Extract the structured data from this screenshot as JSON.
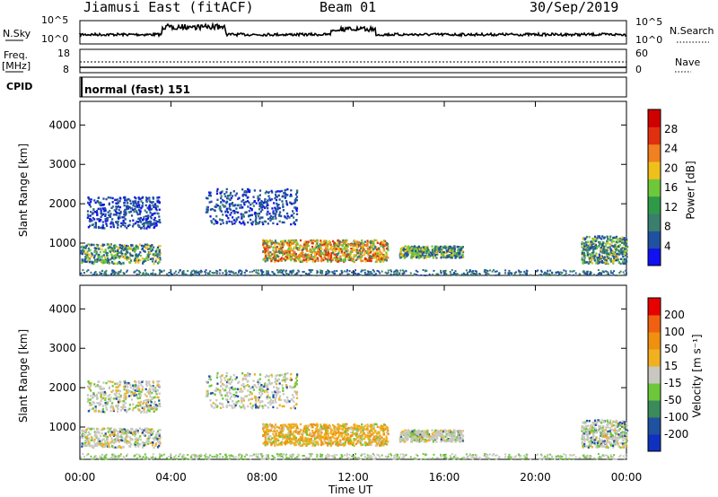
{
  "header": {
    "station": "Jiamusi East (fitACF)",
    "beam": "Beam 01",
    "date": "30/Sep/2019"
  },
  "top_panels": {
    "nsky_label": "N.Sky",
    "nsearch_label": "N.Search",
    "noise_ticks_top": "10^5",
    "noise_ticks_bottom": "10^0",
    "freq_label_line1": "Freq.",
    "freq_label_line2": "[MHz]",
    "freq_ticks": [
      "18",
      "8"
    ],
    "nave_label": "Nave",
    "nave_ticks": [
      "60",
      "0"
    ],
    "cpid_label": "CPID",
    "cpid_value": "normal (fast) 151"
  },
  "colors": {
    "power": [
      "#1010f0",
      "#2050a0",
      "#3a7f6e",
      "#2e9a48",
      "#6fc83a",
      "#f0c01a",
      "#f08020",
      "#e03010",
      "#d00000"
    ],
    "velocity": [
      "#e80000",
      "#f06010",
      "#f09010",
      "#f0b020",
      "#c8c8c0",
      "#6cc83a",
      "#3a8a5a",
      "#2050a0",
      "#1030c0"
    ]
  },
  "chart_data": [
    {
      "type": "heatmap",
      "panel": "power",
      "ylabel": "Slant Range [km]",
      "yticks": [
        "1000",
        "2000",
        "3000",
        "4000"
      ],
      "ylim": [
        180,
        4600
      ],
      "xlim": [
        0,
        24
      ],
      "colorbar_label": "Power [dB]",
      "colorbar_ticks": [
        "4",
        "8",
        "12",
        "16",
        "20",
        "24",
        "28"
      ],
      "scatter_regions": [
        {
          "t": [
            0.3,
            3.5
          ],
          "r": [
            1400,
            2200
          ],
          "level": "low"
        },
        {
          "t": [
            0.0,
            3.5
          ],
          "r": [
            500,
            1000
          ],
          "level": "mid"
        },
        {
          "t": [
            5.5,
            9.5
          ],
          "r": [
            1500,
            2400
          ],
          "level": "low"
        },
        {
          "t": [
            8.0,
            13.5
          ],
          "r": [
            550,
            1100
          ],
          "level": "high"
        },
        {
          "t": [
            14.0,
            16.8
          ],
          "r": [
            650,
            950
          ],
          "level": "mid"
        },
        {
          "t": [
            22.0,
            24.0
          ],
          "r": [
            500,
            1200
          ],
          "level": "mid"
        }
      ]
    },
    {
      "type": "heatmap",
      "panel": "velocity",
      "ylabel": "Slant Range [km]",
      "yticks": [
        "1000",
        "2000",
        "3000",
        "4000"
      ],
      "ylim": [
        180,
        4600
      ],
      "xlim": [
        0,
        24
      ],
      "xticks": [
        "00:00",
        "04:00",
        "08:00",
        "12:00",
        "16:00",
        "20:00",
        "00:00"
      ],
      "xlabel": "Time UT",
      "colorbar_label": "Velocity [m s⁻¹]",
      "colorbar_ticks": [
        "200",
        "100",
        "50",
        "15",
        "-15",
        "-50",
        "-100",
        "-200"
      ]
    }
  ]
}
